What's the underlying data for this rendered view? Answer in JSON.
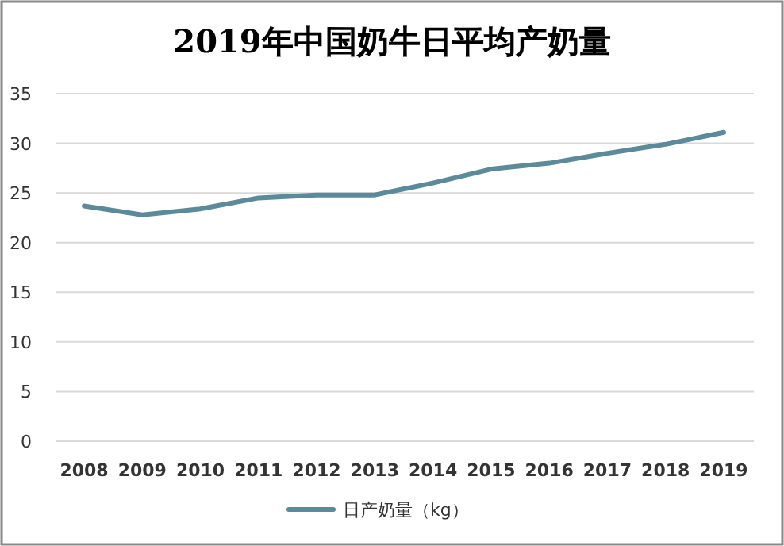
{
  "chart_data": {
    "type": "line",
    "title": "2019年中国奶牛日平均产奶量",
    "categories": [
      "2008",
      "2009",
      "2010",
      "2011",
      "2012",
      "2013",
      "2014",
      "2015",
      "2016",
      "2017",
      "2018",
      "2019"
    ],
    "series": [
      {
        "name": "日产奶量（kg）",
        "color": "#5b8a9a",
        "values": [
          23.7,
          22.8,
          23.4,
          24.5,
          24.8,
          24.8,
          26.0,
          27.4,
          28.0,
          29.0,
          29.9,
          31.1
        ]
      }
    ],
    "ylim": [
      0,
      35
    ],
    "yticks": [
      0,
      5,
      10,
      15,
      20,
      25,
      30,
      35
    ],
    "grid": "y",
    "legend": "bottom",
    "marker": "none",
    "line_style": "solid"
  }
}
